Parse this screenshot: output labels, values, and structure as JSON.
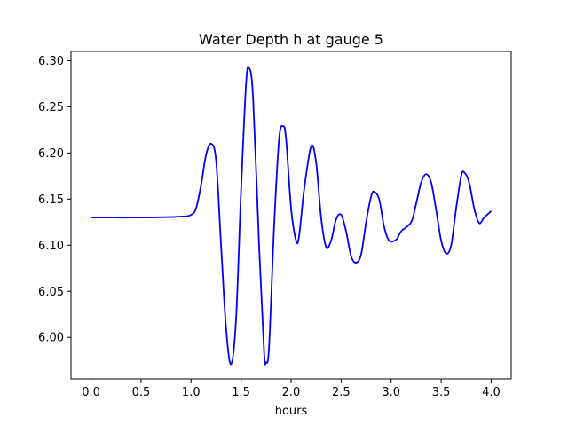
{
  "chart_data": {
    "type": "line",
    "title": "Water Depth h at gauge 5",
    "xlabel": "hours",
    "ylabel": "",
    "xlim": [
      -0.2,
      4.2
    ],
    "ylim": [
      5.955,
      6.31
    ],
    "grid": false,
    "xticks": [
      0.0,
      0.5,
      1.0,
      1.5,
      2.0,
      2.5,
      3.0,
      3.5,
      4.0
    ],
    "xtick_labels": [
      "0.0",
      "0.5",
      "1.0",
      "1.5",
      "2.0",
      "2.5",
      "3.0",
      "3.5",
      "4.0"
    ],
    "yticks": [
      6.0,
      6.05,
      6.1,
      6.15,
      6.2,
      6.25,
      6.3
    ],
    "ytick_labels": [
      "6.00",
      "6.05",
      "6.10",
      "6.15",
      "6.20",
      "6.25",
      "6.30"
    ],
    "series": [
      {
        "color": "#0000ff",
        "points": [
          [
            0.0,
            6.13
          ],
          [
            0.5,
            6.13
          ],
          [
            0.9,
            6.131
          ],
          [
            1.0,
            6.133
          ],
          [
            1.05,
            6.14
          ],
          [
            1.1,
            6.165
          ],
          [
            1.15,
            6.198
          ],
          [
            1.2,
            6.21
          ],
          [
            1.25,
            6.192
          ],
          [
            1.3,
            6.1
          ],
          [
            1.35,
            6.01
          ],
          [
            1.4,
            5.971
          ],
          [
            1.45,
            6.02
          ],
          [
            1.5,
            6.16
          ],
          [
            1.55,
            6.275
          ],
          [
            1.58,
            6.292
          ],
          [
            1.62,
            6.26
          ],
          [
            1.68,
            6.1
          ],
          [
            1.73,
            5.985
          ],
          [
            1.75,
            5.973
          ],
          [
            1.78,
            5.99
          ],
          [
            1.83,
            6.12
          ],
          [
            1.88,
            6.215
          ],
          [
            1.92,
            6.229
          ],
          [
            1.95,
            6.215
          ],
          [
            2.0,
            6.14
          ],
          [
            2.05,
            6.105
          ],
          [
            2.08,
            6.11
          ],
          [
            2.13,
            6.16
          ],
          [
            2.2,
            6.207
          ],
          [
            2.25,
            6.19
          ],
          [
            2.3,
            6.13
          ],
          [
            2.35,
            6.098
          ],
          [
            2.4,
            6.105
          ],
          [
            2.45,
            6.128
          ],
          [
            2.5,
            6.133
          ],
          [
            2.55,
            6.115
          ],
          [
            2.6,
            6.088
          ],
          [
            2.65,
            6.081
          ],
          [
            2.7,
            6.09
          ],
          [
            2.75,
            6.125
          ],
          [
            2.8,
            6.153
          ],
          [
            2.83,
            6.158
          ],
          [
            2.88,
            6.15
          ],
          [
            2.93,
            6.12
          ],
          [
            2.98,
            6.105
          ],
          [
            3.05,
            6.106
          ],
          [
            3.1,
            6.115
          ],
          [
            3.2,
            6.125
          ],
          [
            3.25,
            6.145
          ],
          [
            3.3,
            6.168
          ],
          [
            3.35,
            6.177
          ],
          [
            3.4,
            6.168
          ],
          [
            3.45,
            6.138
          ],
          [
            3.5,
            6.105
          ],
          [
            3.55,
            6.091
          ],
          [
            3.6,
            6.1
          ],
          [
            3.65,
            6.14
          ],
          [
            3.7,
            6.175
          ],
          [
            3.73,
            6.179
          ],
          [
            3.78,
            6.168
          ],
          [
            3.83,
            6.14
          ],
          [
            3.88,
            6.124
          ],
          [
            3.93,
            6.13
          ],
          [
            4.0,
            6.137
          ]
        ]
      }
    ]
  }
}
